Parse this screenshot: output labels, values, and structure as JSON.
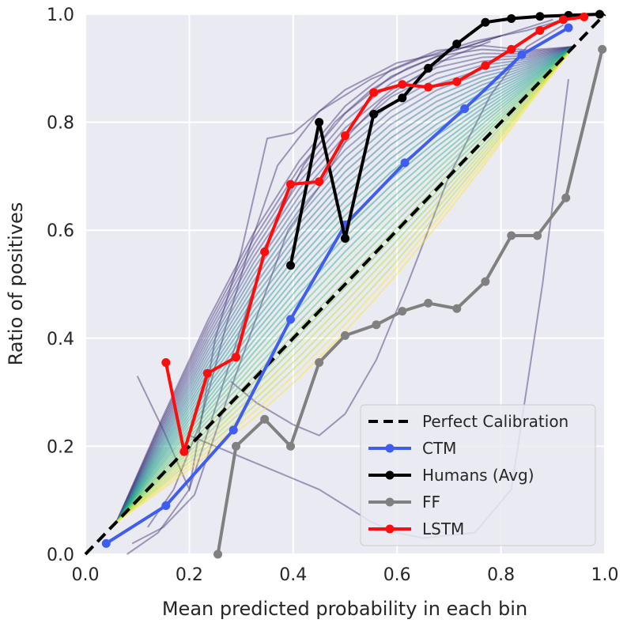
{
  "chart_data": {
    "type": "line",
    "title": "",
    "xlabel": "Mean predicted probability in each bin",
    "ylabel": "Ratio of positives",
    "xlim": [
      0.0,
      1.0
    ],
    "ylim": [
      0.0,
      1.0
    ],
    "xticks": [
      "0.0",
      "0.2",
      "0.4",
      "0.6",
      "0.8",
      "1.0"
    ],
    "yticks": [
      "0.0",
      "0.2",
      "0.4",
      "0.6",
      "0.8",
      "1.0"
    ],
    "grid": true,
    "legend_position": "bottom-right",
    "series": [
      {
        "name": "Perfect Calibration",
        "color": "#000000",
        "style": "dashed",
        "markers": false,
        "x": [
          0.0,
          1.0
        ],
        "y": [
          0.0,
          1.0
        ]
      },
      {
        "name": "CTM",
        "color": "#3f5ef0",
        "style": "solid",
        "markers": true,
        "x": [
          0.04,
          0.155,
          0.285,
          0.395,
          0.5,
          0.615,
          0.73,
          0.84,
          0.93
        ],
        "y": [
          0.02,
          0.09,
          0.23,
          0.435,
          0.61,
          0.725,
          0.825,
          0.925,
          0.975
        ]
      },
      {
        "name": "Humans (Avg)",
        "color": "#000000",
        "style": "solid",
        "markers": true,
        "x": [
          0.395,
          0.45,
          0.5,
          0.555,
          0.61,
          0.66,
          0.715,
          0.77,
          0.82,
          0.875,
          0.93,
          0.99
        ],
        "y": [
          0.535,
          0.8,
          0.585,
          0.815,
          0.845,
          0.9,
          0.945,
          0.985,
          0.992,
          0.996,
          0.998,
          1.0
        ]
      },
      {
        "name": "FF",
        "color": "#808080",
        "style": "solid",
        "markers": true,
        "x": [
          0.255,
          0.29,
          0.345,
          0.395,
          0.45,
          0.5,
          0.56,
          0.61,
          0.66,
          0.715,
          0.77,
          0.82,
          0.87,
          0.925,
          0.995
        ],
        "y": [
          0.0,
          0.2,
          0.25,
          0.2,
          0.355,
          0.405,
          0.425,
          0.45,
          0.465,
          0.455,
          0.505,
          0.59,
          0.59,
          0.66,
          0.935
        ]
      },
      {
        "name": "LSTM",
        "color": "#ff0d0d",
        "style": "solid",
        "markers": true,
        "x": [
          0.155,
          0.19,
          0.235,
          0.29,
          0.345,
          0.395,
          0.45,
          0.5,
          0.555,
          0.61,
          0.66,
          0.715,
          0.77,
          0.82,
          0.875,
          0.92,
          0.96
        ],
        "y": [
          0.355,
          0.19,
          0.335,
          0.365,
          0.56,
          0.685,
          0.69,
          0.775,
          0.855,
          0.87,
          0.865,
          0.875,
          0.905,
          0.935,
          0.97,
          0.99,
          0.995
        ]
      }
    ],
    "background_lines": {
      "note": "many thin translucent per-tick calibration curves (viridis colormap) behind the main series",
      "colors": [
        "#3b2c6e",
        "#433e85",
        "#38588c",
        "#2d708e",
        "#25858e",
        "#1e9b8a",
        "#2ab07f",
        "#52c569",
        "#86d549",
        "#c2df23",
        "#fde725"
      ],
      "curves": [
        {
          "x": [
            0.1,
            0.15,
            0.2,
            0.25,
            0.3,
            0.35,
            0.4,
            0.5,
            0.6,
            0.7,
            0.8,
            0.9
          ],
          "y": [
            0.33,
            0.23,
            0.12,
            0.4,
            0.56,
            0.77,
            0.78,
            0.86,
            0.91,
            0.93,
            0.96,
            0.99
          ]
        },
        {
          "x": [
            0.12,
            0.17,
            0.22,
            0.27,
            0.32,
            0.37,
            0.45,
            0.55,
            0.65,
            0.75,
            0.85,
            0.92
          ],
          "y": [
            0.05,
            0.12,
            0.24,
            0.42,
            0.58,
            0.72,
            0.82,
            0.88,
            0.92,
            0.95,
            0.97,
            0.99
          ]
        },
        {
          "x": [
            0.28,
            0.33,
            0.4,
            0.45,
            0.5,
            0.56,
            0.62,
            0.7,
            0.78,
            0.85,
            0.92
          ],
          "y": [
            0.32,
            0.28,
            0.24,
            0.22,
            0.26,
            0.36,
            0.5,
            0.7,
            0.85,
            0.94,
            0.98
          ]
        },
        {
          "x": [
            0.2,
            0.25,
            0.3,
            0.35,
            0.4,
            0.45,
            0.5,
            0.55,
            0.6,
            0.65,
            0.75,
            0.82,
            0.88,
            0.93
          ],
          "y": [
            0.22,
            0.2,
            0.18,
            0.16,
            0.14,
            0.12,
            0.09,
            0.06,
            0.04,
            0.03,
            0.04,
            0.12,
            0.5,
            0.88
          ]
        },
        {
          "x": [
            0.08,
            0.14,
            0.2,
            0.26,
            0.3,
            0.36,
            0.42,
            0.48,
            0.55,
            0.62,
            0.7,
            0.8
          ],
          "y": [
            0.0,
            0.04,
            0.12,
            0.3,
            0.42,
            0.6,
            0.72,
            0.8,
            0.86,
            0.9,
            0.93,
            0.96
          ]
        },
        {
          "x": [
            0.09,
            0.15,
            0.21,
            0.27,
            0.33,
            0.39,
            0.45,
            0.51,
            0.57,
            0.63,
            0.7,
            0.78
          ],
          "y": [
            0.02,
            0.05,
            0.11,
            0.28,
            0.44,
            0.6,
            0.68,
            0.78,
            0.84,
            0.88,
            0.92,
            0.95
          ]
        }
      ]
    }
  }
}
